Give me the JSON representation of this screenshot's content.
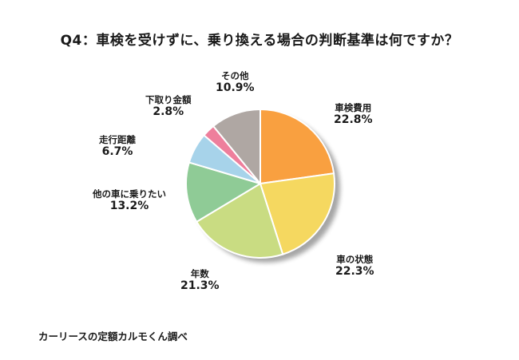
{
  "title": "Q4：車検を受けずに、乗り換える場合の判断基準は何ですか？",
  "source": "カーリースの定額カルモくん調べ",
  "chart_data": {
    "type": "pie",
    "title": "Q4：車検を受けずに、乗り換える場合の判断基準は何ですか？",
    "slices": [
      {
        "label": "車検費用",
        "value": 22.8,
        "value_label": "22.8%",
        "color": "#F9A040"
      },
      {
        "label": "車の状態",
        "value": 22.3,
        "value_label": "22.3%",
        "color": "#F5D860"
      },
      {
        "label": "年数",
        "value": 21.3,
        "value_label": "21.3%",
        "color": "#C9DC82"
      },
      {
        "label": "他の車に乗りたい",
        "value": 13.2,
        "value_label": "13.2%",
        "color": "#8FCB96"
      },
      {
        "label": "走行距離",
        "value": 6.7,
        "value_label": "6.7%",
        "color": "#A7D3EA"
      },
      {
        "label": "下取り金額",
        "value": 2.8,
        "value_label": "2.8%",
        "color": "#EE7F9C"
      },
      {
        "label": "その他",
        "value": 10.9,
        "value_label": "10.9%",
        "color": "#AFA7A3"
      }
    ]
  }
}
